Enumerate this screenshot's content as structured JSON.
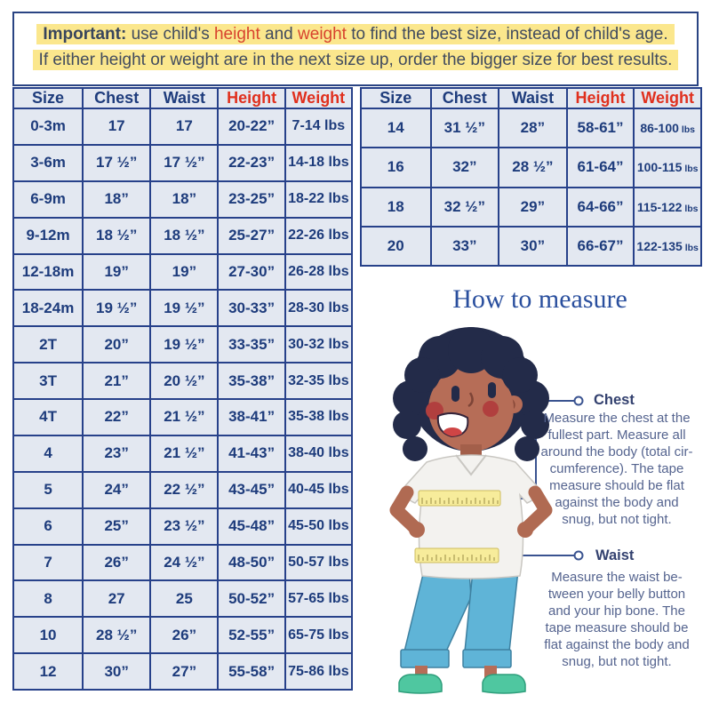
{
  "banner": {
    "line1": {
      "bold": "Important:",
      "seg1": " use child's ",
      "red1": "height",
      "seg2": " and ",
      "red2": "weight",
      "seg3": " to find the best size, instead of child's age."
    },
    "line2": "If either height or weight are in the next size up, order the bigger size for best results."
  },
  "tables": {
    "headers": [
      "Size",
      "Chest",
      "Waist",
      "Height",
      "Weight"
    ],
    "left_rows": [
      [
        "0-3m",
        "17",
        "17",
        "20-22”",
        "7-14 lbs"
      ],
      [
        "3-6m",
        "17 ½”",
        "17 ½”",
        "22-23”",
        "14-18 lbs"
      ],
      [
        "6-9m",
        "18”",
        "18”",
        "23-25”",
        "18-22 lbs"
      ],
      [
        "9-12m",
        "18 ½”",
        "18 ½”",
        "25-27”",
        "22-26 lbs"
      ],
      [
        "12-18m",
        "19”",
        "19”",
        "27-30”",
        "26-28 lbs"
      ],
      [
        "18-24m",
        "19 ½”",
        "19 ½”",
        "30-33”",
        "28-30 lbs"
      ],
      [
        "2T",
        "20”",
        "19 ½”",
        "33-35”",
        "30-32 lbs"
      ],
      [
        "3T",
        "21”",
        "20 ½”",
        "35-38”",
        "32-35 lbs"
      ],
      [
        "4T",
        "22”",
        "21 ½”",
        "38-41”",
        "35-38 lbs"
      ],
      [
        "4",
        "23”",
        "21 ½”",
        "41-43”",
        "38-40 lbs"
      ],
      [
        "5",
        "24”",
        "22 ½”",
        "43-45”",
        "40-45 lbs"
      ],
      [
        "6",
        "25”",
        "23 ½”",
        "45-48”",
        "45-50 lbs"
      ],
      [
        "7",
        "26”",
        "24 ½”",
        "48-50”",
        "50-57 lbs"
      ],
      [
        "8",
        "27",
        "25",
        "50-52”",
        "57-65 lbs"
      ],
      [
        "10",
        "28 ½”",
        "26”",
        "52-55”",
        "65-75 lbs"
      ],
      [
        "12",
        "30”",
        "27”",
        "55-58”",
        "75-86 lbs"
      ]
    ],
    "right_rows": [
      [
        "14",
        "31 ½”",
        "28”",
        "58-61”",
        "86-100 lbs"
      ],
      [
        "16",
        "32”",
        "28 ½”",
        "61-64”",
        "100-115 lbs"
      ],
      [
        "18",
        "32 ½”",
        "29”",
        "64-66”",
        "115-122 lbs"
      ],
      [
        "20",
        "33”",
        "30”",
        "66-67”",
        "122-135 lbs"
      ]
    ]
  },
  "measure": {
    "title": "How to measure",
    "chest": {
      "label": "Chest",
      "text": "Measure the chest at the\nfullest part. Measure all\naround the body (total cir-\ncumference). The tape\nmeasure should be flat\nagainst the body and\nsnug, but not tight."
    },
    "waist": {
      "label": "Waist",
      "text": "Measure the waist be-\ntween your belly button\nand your hip bone. The\ntape measure should be\nflat against the body and\nsnug, but not tight."
    }
  },
  "colors": {
    "accent_navy": "#27418a",
    "table_text": "#1e3c7c",
    "header_red": "#e0301e",
    "banner_red": "#d8432e",
    "banner_yellow": "#fbe78d",
    "cell_bg": "#e3e8f1",
    "title_blue": "#2a4f9e",
    "body_text": "#55648f",
    "tape_yellow": "#f7ec9b",
    "pants_blue": "#5fb4d7",
    "shoes_teal": "#4fc7a0"
  }
}
